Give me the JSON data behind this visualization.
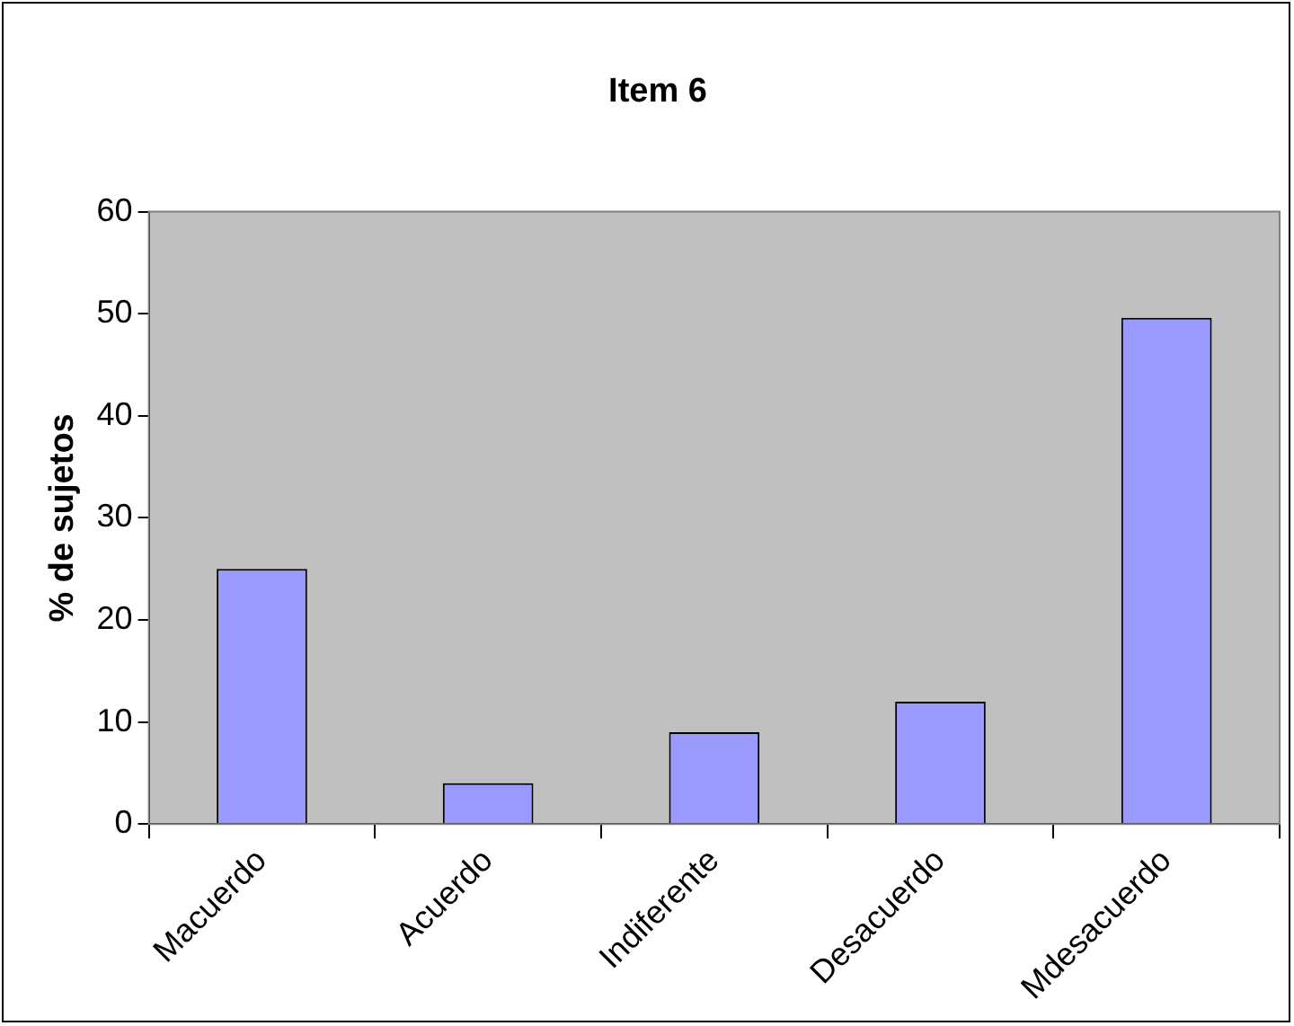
{
  "chart_data": {
    "type": "bar",
    "title": "Item 6",
    "ylabel": "% de sujetos",
    "categories": [
      "Macuerdo",
      "Acuerdo",
      "Indiferente",
      "Desacuerdo",
      "Mdesacuerdo"
    ],
    "values": [
      25,
      4,
      9,
      12,
      49.6
    ],
    "color": "#9999ff",
    "ylim": [
      0,
      60
    ],
    "yticks": [
      0,
      10,
      20,
      30,
      40,
      50,
      60
    ],
    "grid": false,
    "legend": false
  }
}
